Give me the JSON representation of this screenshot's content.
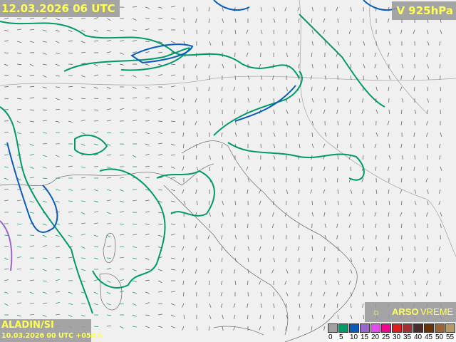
{
  "header": {
    "valid_time": "12.03.2026 06 UTC",
    "parameter": "V 925hPa"
  },
  "model": {
    "name": "ALADIN/SI",
    "run": "10.03.2026 00 UTC +054 h"
  },
  "brand": {
    "icon": "sun-cloud-icon",
    "bold": "ARSO",
    "rest": "VREME"
  },
  "legend": {
    "ticks": [
      "0",
      "5",
      "10",
      "15",
      "20",
      "25",
      "30",
      "35",
      "40",
      "45",
      "50",
      "55"
    ],
    "colors": [
      "#a0a0a0",
      "#00996a",
      "#0a5cb8",
      "#9966cc",
      "#e44cf0",
      "#f0088c",
      "#e01c1c",
      "#a03034",
      "#4a2c2c",
      "#6a3206",
      "#9a6434",
      "#b89a66"
    ]
  }
}
